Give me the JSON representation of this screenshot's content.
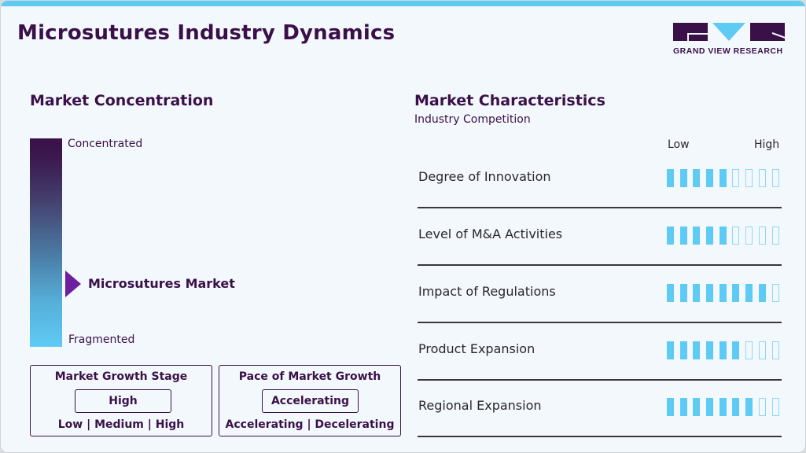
{
  "header": {
    "title": "Microsutures Industry Dynamics",
    "logo_text": "GRAND VIEW RESEARCH"
  },
  "colors": {
    "brand_dark": "#3a1048",
    "accent_blue": "#5ecbf5",
    "pointer_purple": "#6c1f9e",
    "background": "#f3f8fc"
  },
  "concentration": {
    "title": "Market Concentration",
    "top_label": "Concentrated",
    "bottom_label": "Fragmented",
    "market_label": "Microsutures Market"
  },
  "growth_stage": {
    "title": "Market Growth Stage",
    "value": "High",
    "scale": "Low | Medium | High"
  },
  "growth_pace": {
    "title": "Pace of Market Growth",
    "value": "Accelerating",
    "scale": "Accelerating | Decelerating"
  },
  "characteristics": {
    "title": "Market Characteristics",
    "subtitle": "Industry Competition",
    "scale_low": "Low",
    "scale_high": "High",
    "max_score": 9,
    "rows": [
      {
        "label": "Degree of Innovation",
        "score": 5
      },
      {
        "label": "Level of M&A Activities",
        "score": 5
      },
      {
        "label": "Impact of Regulations",
        "score": 8
      },
      {
        "label": "Product Expansion",
        "score": 6
      },
      {
        "label": "Regional Expansion",
        "score": 7
      }
    ]
  }
}
